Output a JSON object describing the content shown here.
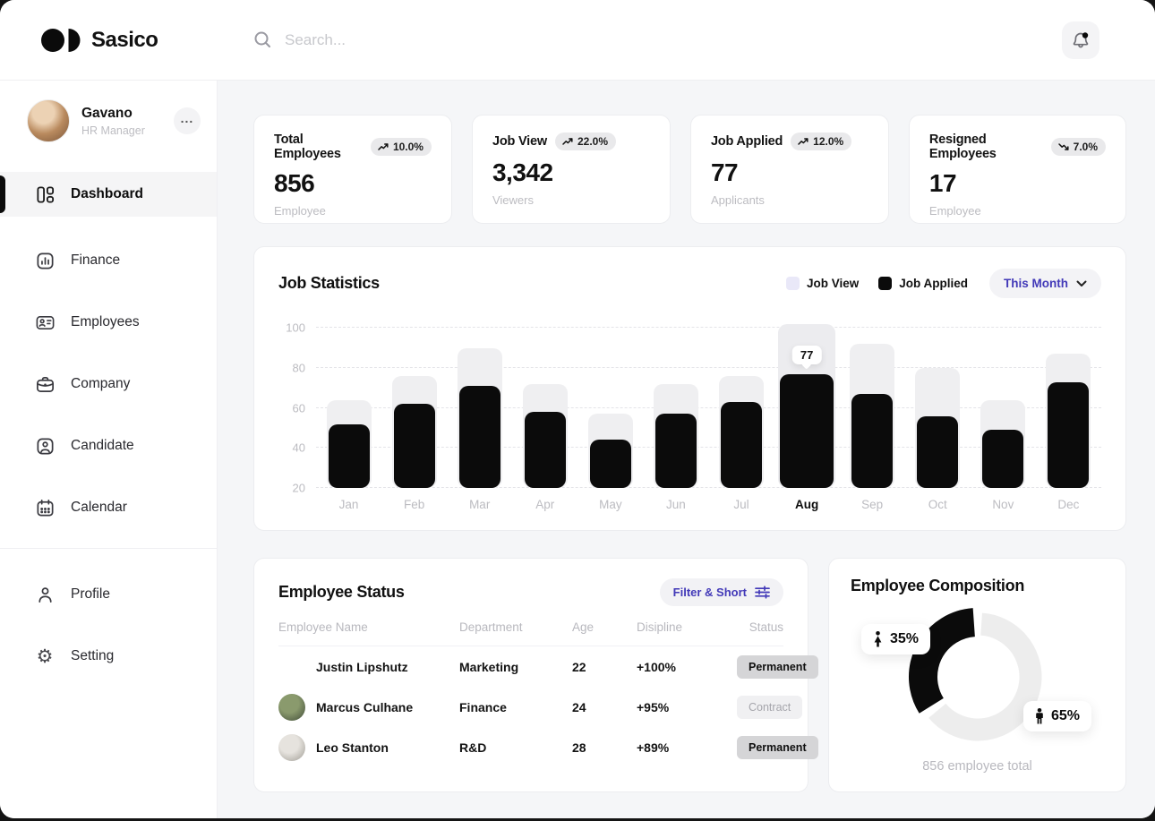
{
  "colors": {
    "accent": "#4239B8",
    "job_view": "#EFEFF1",
    "job_view_legend": "#E9E8F8",
    "job_applied": "#0B0B0B"
  },
  "header": {
    "brand": "Sasico",
    "search_placeholder": "Search..."
  },
  "sidebar": {
    "user": {
      "name": "Gavano",
      "role": "HR Manager",
      "more_label": "..."
    },
    "items": [
      {
        "label": "Dashboard",
        "active": true
      },
      {
        "label": "Finance",
        "active": false
      },
      {
        "label": "Employees",
        "active": false
      },
      {
        "label": "Company",
        "active": false
      },
      {
        "label": "Candidate",
        "active": false
      },
      {
        "label": "Calendar",
        "active": false
      }
    ],
    "footer_items": [
      {
        "label": "Profile"
      },
      {
        "label": "Setting"
      }
    ]
  },
  "stats": {
    "cards": [
      {
        "title": "Total Employees",
        "badge": "10.0%",
        "trend": "up",
        "value": "856",
        "sub": "Employee"
      },
      {
        "title": "Job View",
        "badge": "22.0%",
        "trend": "up",
        "value": "3,342",
        "sub": "Viewers"
      },
      {
        "title": "Job Applied",
        "badge": "12.0%",
        "trend": "up",
        "value": "77",
        "sub": "Applicants"
      },
      {
        "title": "Resigned Employees",
        "badge": "7.0%",
        "trend": "down",
        "value": "17",
        "sub": "Employee"
      }
    ]
  },
  "job_statistics": {
    "title": "Job Statistics",
    "legend": [
      {
        "label": "Job View"
      },
      {
        "label": "Job Applied"
      }
    ],
    "period": "This Month",
    "chart_data": {
      "type": "bar",
      "categories": [
        "Jan",
        "Feb",
        "Mar",
        "Apr",
        "May",
        "Jun",
        "Jul",
        "Aug",
        "Sep",
        "Oct",
        "Nov",
        "Dec"
      ],
      "series": [
        {
          "name": "Job View",
          "values": [
            64,
            76,
            90,
            72,
            57,
            72,
            76,
            102,
            92,
            80,
            64,
            87
          ]
        },
        {
          "name": "Job Applied",
          "values": [
            52,
            62,
            71,
            58,
            44,
            57,
            63,
            77,
            67,
            56,
            49,
            73
          ]
        }
      ],
      "y_ticks": [
        20,
        40,
        60,
        80,
        100
      ],
      "baseline": 20,
      "y_max": 105,
      "highlight_category": "Aug",
      "tooltip_value": "77",
      "grid": "dashed-horizontal",
      "legend_position": "top-right"
    }
  },
  "employee_status": {
    "title": "Employee Status",
    "filter_label": "Filter & Short",
    "columns": [
      "Employee Name",
      "Department",
      "Age",
      "Disipline",
      "Status"
    ],
    "rows": [
      {
        "name": "Justin Lipshutz",
        "department": "Marketing",
        "age": "22",
        "disipline": "+100%",
        "status": "Permanent",
        "status_variant": "permanent"
      },
      {
        "name": "Marcus Culhane",
        "department": "Finance",
        "age": "24",
        "disipline": "+95%",
        "status": "Contract",
        "status_variant": "contract"
      },
      {
        "name": "Leo Stanton",
        "department": "R&D",
        "age": "28",
        "disipline": "+89%",
        "status": "Permanent",
        "status_variant": "permanent"
      }
    ]
  },
  "employee_composition": {
    "title": "Employee Composition",
    "caption": "856 employee total",
    "chart_data": {
      "type": "pie",
      "segments": [
        {
          "label": "Female",
          "value": 35,
          "display": "35%",
          "color": "#0B0B0B"
        },
        {
          "label": "Male",
          "value": 65,
          "display": "65%",
          "color": "#EDEDED"
        }
      ]
    }
  }
}
